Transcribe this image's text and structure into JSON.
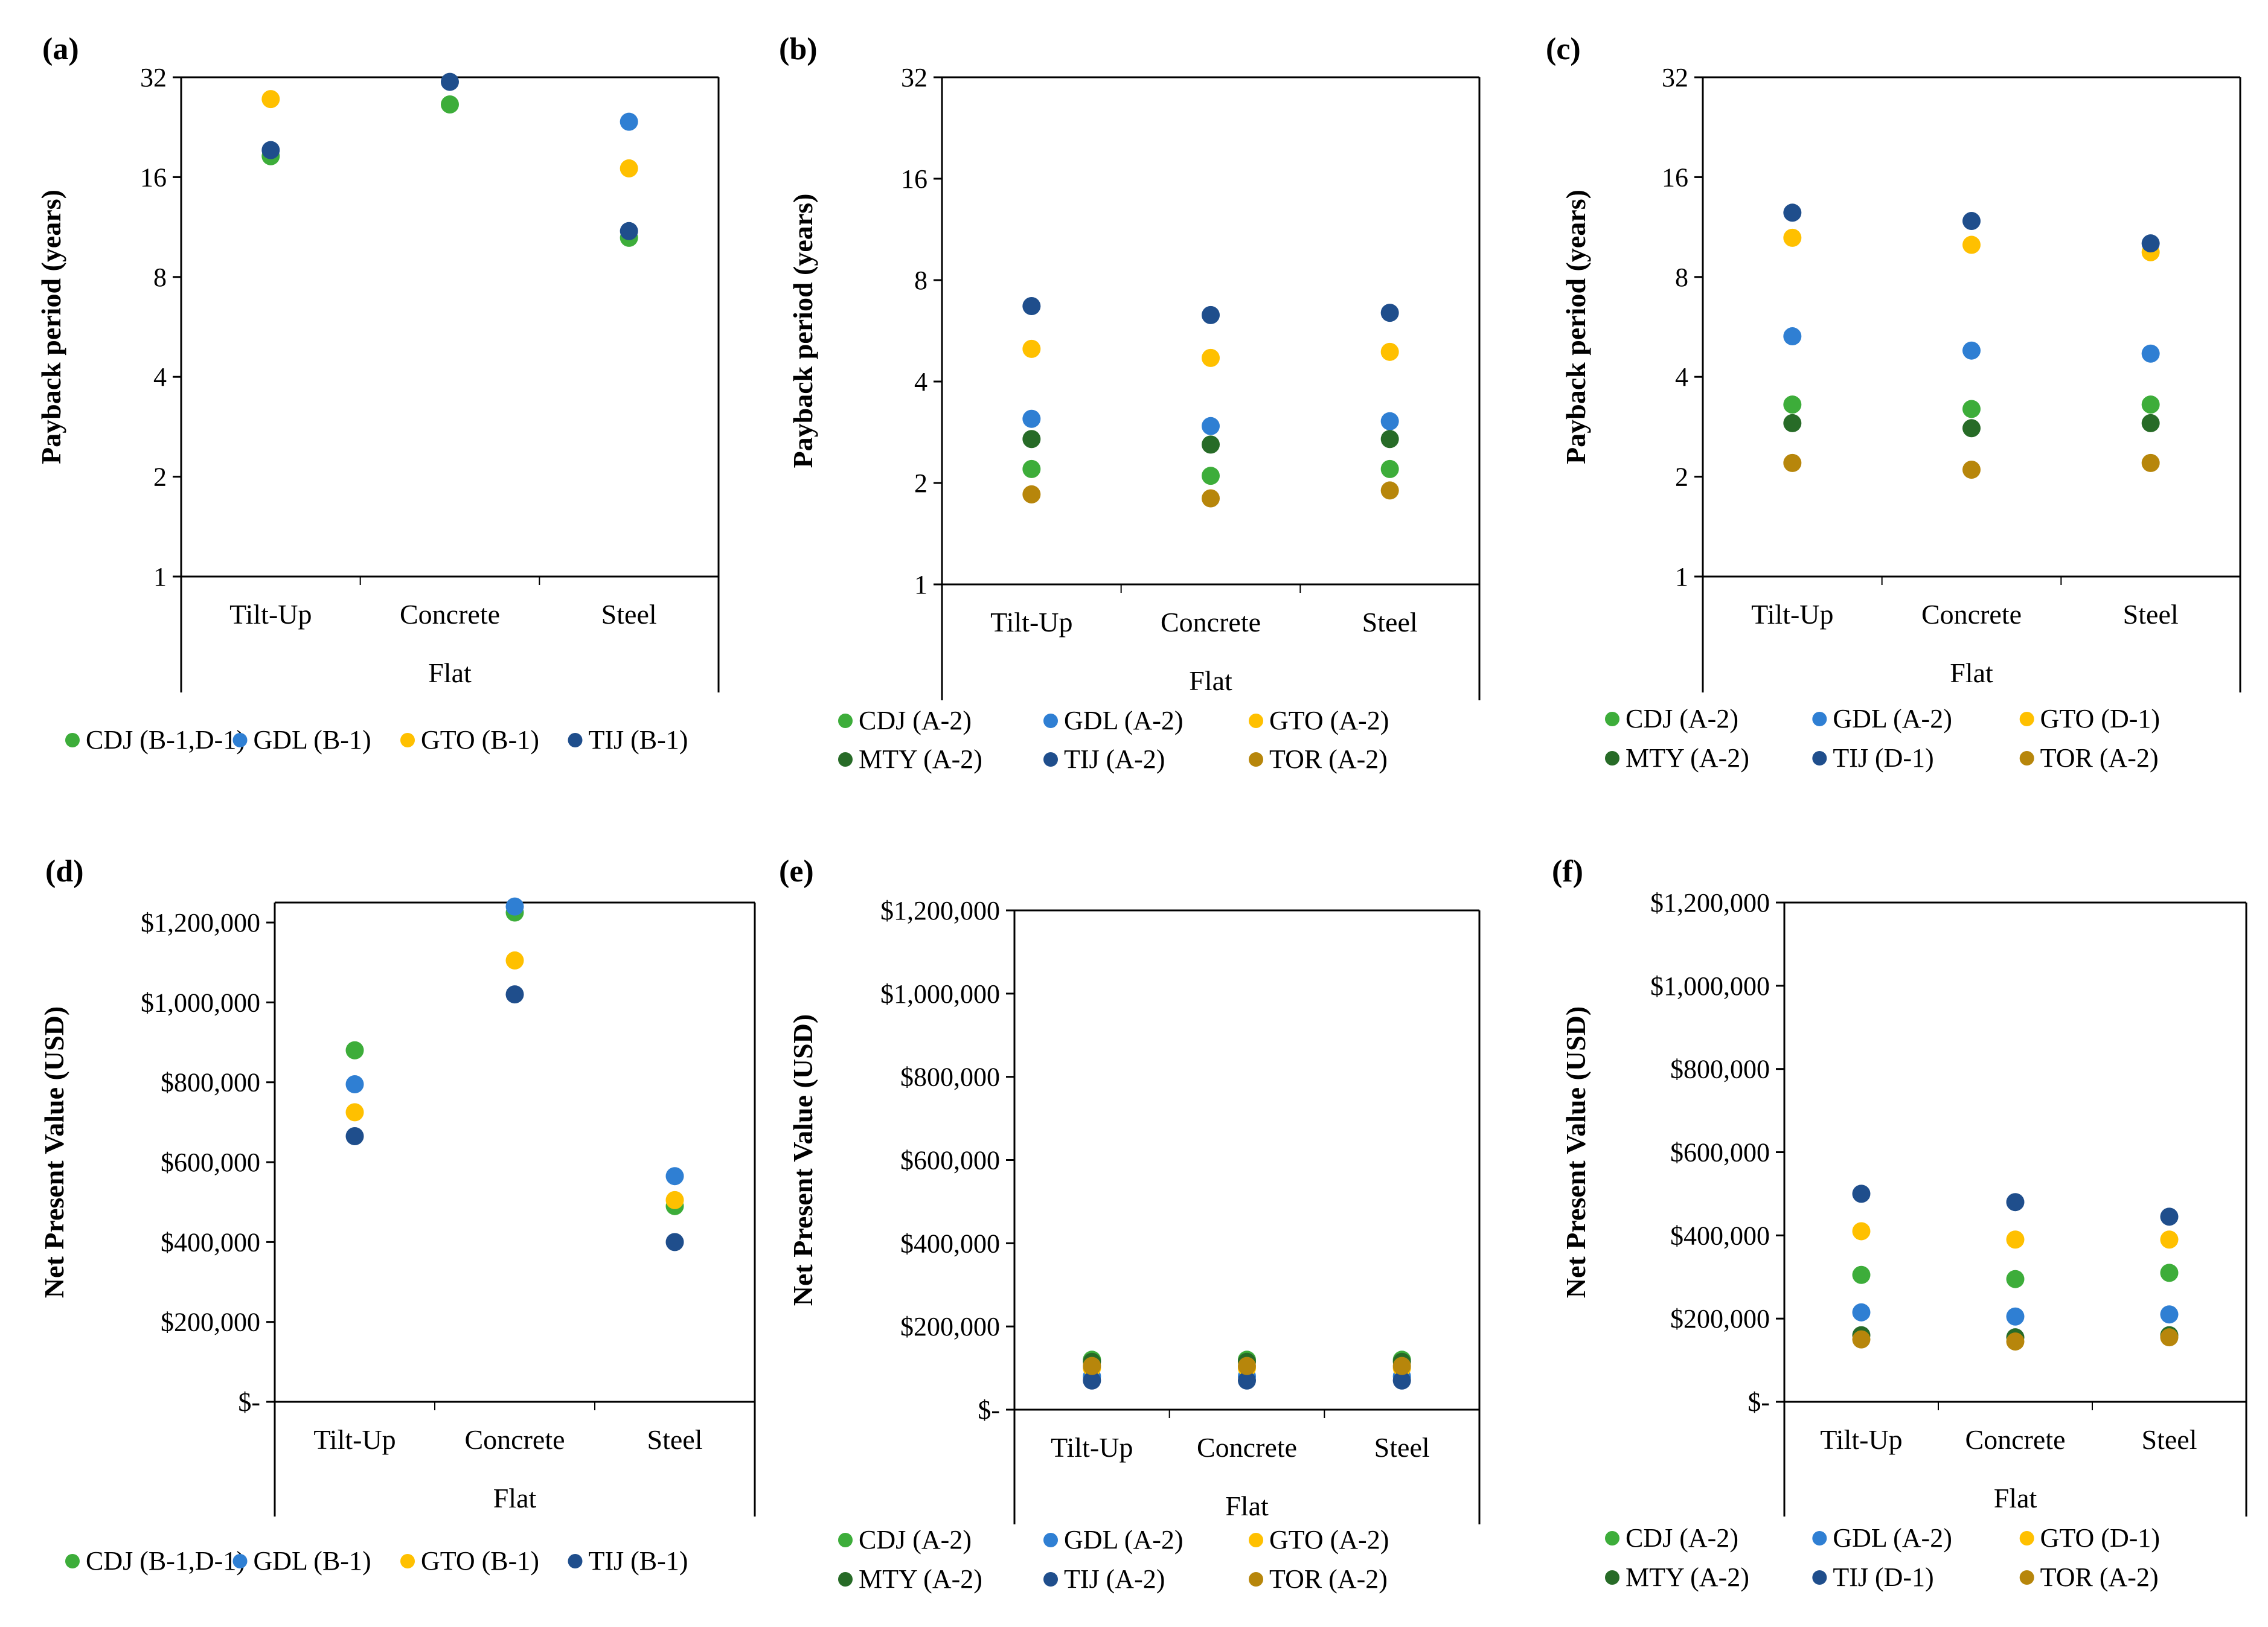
{
  "colors": {
    "CDJ": "#3dad3a",
    "GDL": "#2f7fd3",
    "GTO": "#ffc000",
    "TIJ": "#1f4e8c",
    "MTY": "#276b27",
    "TOR": "#b7860b"
  },
  "chart_data": [
    {
      "panel": "(a)",
      "type": "scatter",
      "scale": "log2",
      "ylabel": "Payback period (years)",
      "xlabel": "Flat",
      "categories": [
        "Tilt-Up",
        "Concrete",
        "Steel"
      ],
      "yticks": [
        "1",
        "2",
        "4",
        "8",
        "16",
        "32"
      ],
      "ylim": [
        1,
        32
      ],
      "series": [
        {
          "name": "CDJ (B-1,D-1)",
          "key": "CDJ",
          "values": [
            18.5,
            26.5,
            10.5
          ]
        },
        {
          "name": "GDL (B-1)",
          "key": "GDL",
          "values": [
            null,
            null,
            23.5
          ]
        },
        {
          "name": "GTO (B-1)",
          "key": "GTO",
          "values": [
            27.5,
            null,
            17.0
          ]
        },
        {
          "name": "TIJ (B-1)",
          "key": "TIJ",
          "values": [
            19.3,
            31.0,
            11.0
          ]
        }
      ],
      "legend_cols": 4
    },
    {
      "panel": "(b)",
      "type": "scatter",
      "scale": "log2",
      "ylabel": "Payback period (years)",
      "xlabel": "Flat",
      "categories": [
        "Tilt-Up",
        "Concrete",
        "Steel"
      ],
      "yticks": [
        "1",
        "2",
        "4",
        "8",
        "16",
        "32"
      ],
      "ylim": [
        1,
        32
      ],
      "series": [
        {
          "name": "CDJ (A-2)",
          "key": "CDJ",
          "values": [
            2.2,
            2.1,
            2.2
          ]
        },
        {
          "name": "GDL (A-2)",
          "key": "GDL",
          "values": [
            3.1,
            2.95,
            3.05
          ]
        },
        {
          "name": "GTO (A-2)",
          "key": "GTO",
          "values": [
            5.0,
            4.7,
            4.9
          ]
        },
        {
          "name": "MTY (A-2)",
          "key": "MTY",
          "values": [
            2.7,
            2.6,
            2.7
          ]
        },
        {
          "name": "TIJ (A-2)",
          "key": "TIJ",
          "values": [
            6.7,
            6.3,
            6.4
          ]
        },
        {
          "name": "TOR (A-2)",
          "key": "TOR",
          "values": [
            1.85,
            1.8,
            1.9
          ]
        }
      ],
      "legend_cols": 3
    },
    {
      "panel": "(c)",
      "type": "scatter",
      "scale": "log2",
      "ylabel": "Payback period (years)",
      "xlabel": "Flat",
      "categories": [
        "Tilt-Up",
        "Concrete",
        "Steel"
      ],
      "yticks": [
        "1",
        "2",
        "4",
        "8",
        "16",
        "32"
      ],
      "ylim": [
        1,
        32
      ],
      "series": [
        {
          "name": "CDJ (A-2)",
          "key": "CDJ",
          "values": [
            3.3,
            3.2,
            3.3
          ]
        },
        {
          "name": "GDL (A-2)",
          "key": "GDL",
          "values": [
            5.3,
            4.8,
            4.7
          ]
        },
        {
          "name": "GTO (D-1)",
          "key": "GTO",
          "values": [
            10.5,
            10.0,
            9.5
          ]
        },
        {
          "name": "MTY (A-2)",
          "key": "MTY",
          "values": [
            2.9,
            2.8,
            2.9
          ]
        },
        {
          "name": "TIJ (D-1)",
          "key": "TIJ",
          "values": [
            12.5,
            11.8,
            10.1
          ]
        },
        {
          "name": "TOR (A-2)",
          "key": "TOR",
          "values": [
            2.2,
            2.1,
            2.2
          ]
        }
      ],
      "legend_cols": 3
    },
    {
      "panel": "(d)",
      "type": "scatter",
      "scale": "linear",
      "ylabel": "Net Present Value (USD)",
      "xlabel": "Flat",
      "categories": [
        "Tilt-Up",
        "Concrete",
        "Steel"
      ],
      "yticks": [
        "$-",
        "$200,000",
        "$400,000",
        "$600,000",
        "$800,000",
        "$1,000,000",
        "$1,200,000"
      ],
      "ylim": [
        0,
        1250000
      ],
      "series": [
        {
          "name": "CDJ (B-1,D-1)",
          "key": "CDJ",
          "values": [
            880000,
            1225000,
            490000
          ]
        },
        {
          "name": "GDL (B-1)",
          "key": "GDL",
          "values": [
            795000,
            1240000,
            565000
          ]
        },
        {
          "name": "GTO (B-1)",
          "key": "GTO",
          "values": [
            725000,
            1105000,
            505000
          ]
        },
        {
          "name": "TIJ (B-1)",
          "key": "TIJ",
          "values": [
            665000,
            1020000,
            400000
          ]
        }
      ],
      "legend_cols": 4
    },
    {
      "panel": "(e)",
      "type": "scatter",
      "scale": "linear",
      "ylabel": "Net Present Value (USD)",
      "xlabel": "Flat",
      "categories": [
        "Tilt-Up",
        "Concrete",
        "Steel"
      ],
      "yticks": [
        "$-",
        "$200,000",
        "$400,000",
        "$600,000",
        "$800,000",
        "$1,000,000",
        "$1,200,000"
      ],
      "ylim": [
        0,
        1200000
      ],
      "series": [
        {
          "name": "CDJ (A-2)",
          "key": "CDJ",
          "values": [
            120000,
            120000,
            120000
          ]
        },
        {
          "name": "GDL (A-2)",
          "key": "GDL",
          "values": [
            80000,
            80000,
            80000
          ]
        },
        {
          "name": "GTO (A-2)",
          "key": "GTO",
          "values": [
            100000,
            100000,
            100000
          ]
        },
        {
          "name": "MTY (A-2)",
          "key": "MTY",
          "values": [
            115000,
            115000,
            115000
          ]
        },
        {
          "name": "TIJ (A-2)",
          "key": "TIJ",
          "values": [
            70000,
            70000,
            70000
          ]
        },
        {
          "name": "TOR (A-2)",
          "key": "TOR",
          "values": [
            105000,
            105000,
            105000
          ]
        }
      ],
      "legend_cols": 3
    },
    {
      "panel": "(f)",
      "type": "scatter",
      "scale": "linear",
      "ylabel": "Net Present Value (USD)",
      "xlabel": "Flat",
      "categories": [
        "Tilt-Up",
        "Concrete",
        "Steel"
      ],
      "yticks": [
        "$-",
        "$200,000",
        "$400,000",
        "$600,000",
        "$800,000",
        "$1,000,000",
        "$1,200,000"
      ],
      "ylim": [
        0,
        1200000
      ],
      "series": [
        {
          "name": "CDJ (A-2)",
          "key": "CDJ",
          "values": [
            305000,
            295000,
            310000
          ]
        },
        {
          "name": "GDL (A-2)",
          "key": "GDL",
          "values": [
            215000,
            205000,
            210000
          ]
        },
        {
          "name": "GTO (D-1)",
          "key": "GTO",
          "values": [
            410000,
            390000,
            390000
          ]
        },
        {
          "name": "MTY (A-2)",
          "key": "MTY",
          "values": [
            160000,
            155000,
            160000
          ]
        },
        {
          "name": "TIJ (D-1)",
          "key": "TIJ",
          "values": [
            500000,
            480000,
            445000
          ]
        },
        {
          "name": "TOR (A-2)",
          "key": "TOR",
          "values": [
            150000,
            145000,
            155000
          ]
        }
      ],
      "legend_cols": 3
    }
  ]
}
